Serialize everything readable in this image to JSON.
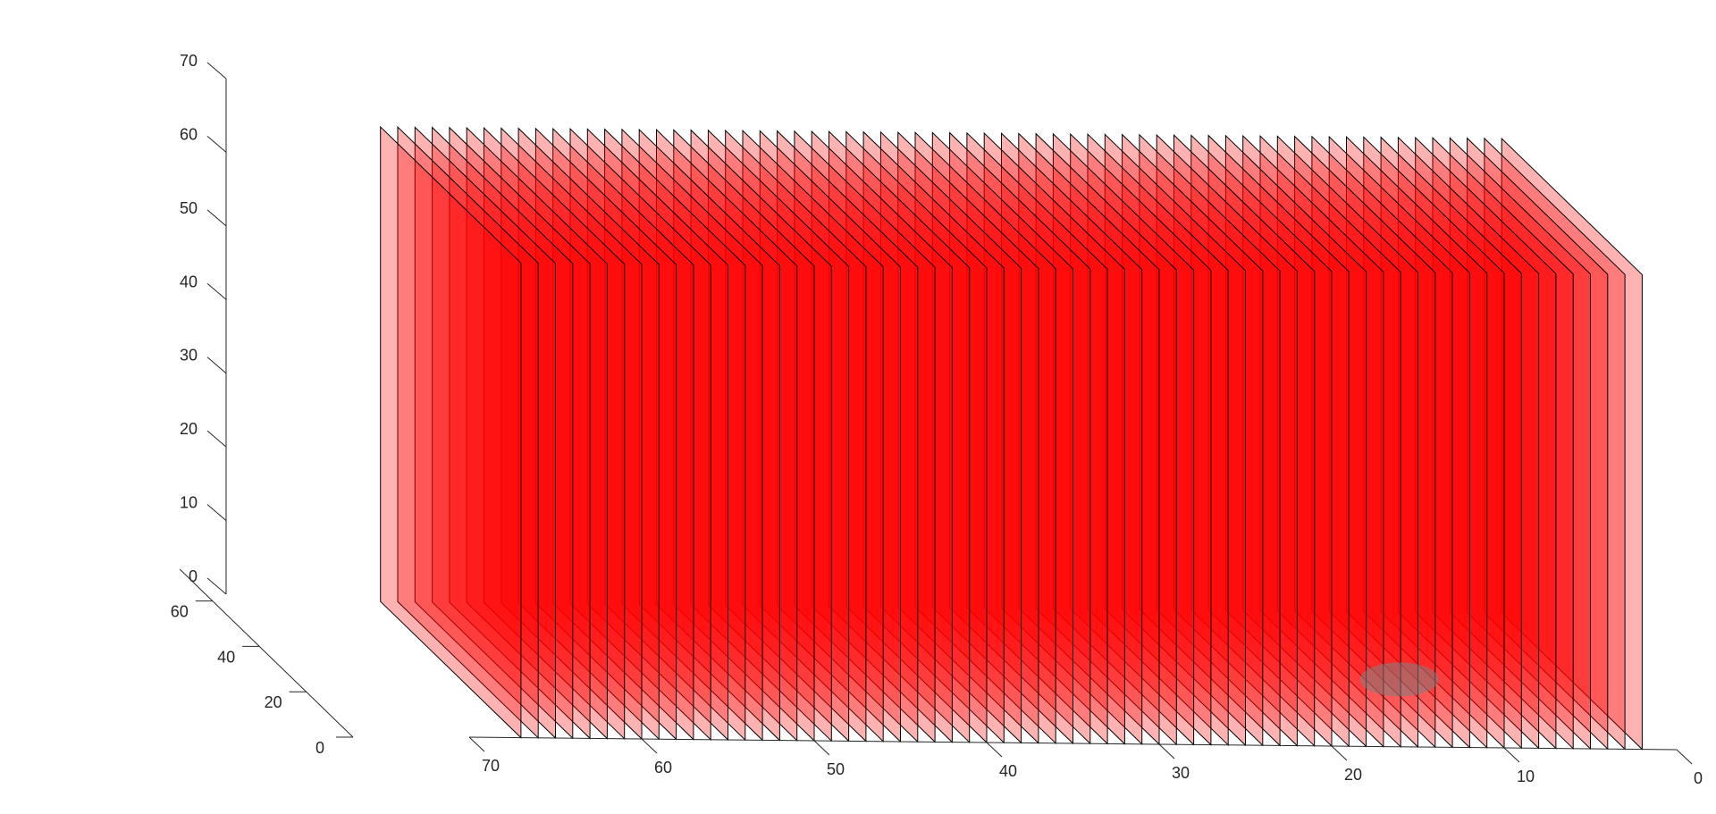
{
  "chart_data": {
    "type": "3d-slices",
    "title": "",
    "xlabel": "",
    "ylabel": "",
    "zlabel": "",
    "x_axis": {
      "ticks": [
        0,
        10,
        20,
        30,
        40,
        50,
        60,
        70
      ],
      "range": [
        0,
        70
      ]
    },
    "y_axis": {
      "ticks": [
        0,
        20,
        40,
        60
      ],
      "range": [
        0,
        60
      ]
    },
    "z_axis": {
      "ticks": [
        0,
        10,
        20,
        30,
        40,
        50,
        60,
        70
      ],
      "range": [
        0,
        70
      ]
    },
    "slices": {
      "orientation": "constant-x planes",
      "x_positions": [
        2,
        3,
        4,
        5,
        6,
        7,
        8,
        9,
        10,
        11,
        12,
        13,
        14,
        15,
        16,
        17,
        18,
        19,
        20,
        21,
        22,
        23,
        24,
        25,
        26,
        27,
        28,
        29,
        30,
        31,
        32,
        33,
        34,
        35,
        36,
        37,
        38,
        39,
        40,
        41,
        42,
        43,
        44,
        45,
        46,
        47,
        48,
        49,
        50,
        51,
        52,
        53,
        54,
        55,
        56,
        57,
        58,
        59,
        60,
        61,
        62,
        63,
        64,
        65,
        66,
        67
      ],
      "y_range": [
        0,
        60
      ],
      "z_range": [
        0,
        64
      ],
      "color": "#ff0000",
      "face_alpha": 0.3,
      "edge_color": "#000000"
    },
    "highlight": {
      "shape": "ellipse",
      "color": "#808080",
      "center_x": 12,
      "center_y": 30,
      "z": 0
    },
    "grid": false,
    "legend": "none"
  }
}
